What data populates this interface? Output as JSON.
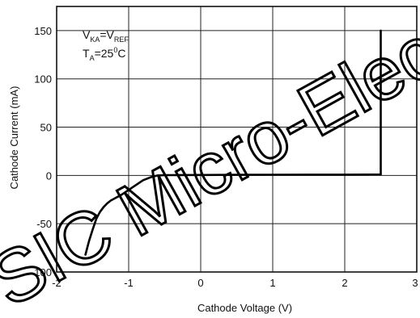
{
  "chart_data": {
    "type": "line",
    "xlabel": "Cathode Voltage (V)",
    "ylabel": "Cathode Current (mA)",
    "xlim": [
      -2,
      3
    ],
    "ylim": [
      -100,
      175
    ],
    "x_ticks": [
      -2,
      -1,
      0,
      1,
      2,
      3
    ],
    "y_ticks": [
      -100,
      -50,
      0,
      50,
      100,
      150
    ],
    "x_tick_labels": [
      "-2",
      "-1",
      "0",
      "1",
      "2",
      "3"
    ],
    "y_tick_labels": [
      "-100",
      "-50",
      "0",
      "50",
      "100",
      "150"
    ],
    "grid": true,
    "annotation": {
      "line1_main": "V",
      "line1_sub1": "KA",
      "line1_eq": "=V",
      "line1_sub2": "REF",
      "line2_main": "T",
      "line2_sub": "A",
      "line2_eq": "=25",
      "line2_sup": "0",
      "line2_unit": "C"
    },
    "series": [
      {
        "x": [
          -1.6,
          -1.55,
          -1.5,
          -1.45,
          -1.4,
          -1.35,
          -1.3,
          -1.25,
          -1.2,
          -1.1,
          -1.0,
          -0.9,
          -0.8,
          -0.7,
          -0.6,
          -0.5,
          -0.3,
          0.0,
          0.5,
          1.0,
          1.5,
          2.0,
          2.3,
          2.5,
          2.5
        ],
        "y": [
          -82,
          -68,
          -56,
          -45,
          -38,
          -33,
          -29,
          -26,
          -24,
          -20,
          -15,
          -10,
          -5,
          -2,
          0,
          0.3,
          0.4,
          0.5,
          0.6,
          0.7,
          0.8,
          0.8,
          0.9,
          1,
          150
        ]
      }
    ],
    "watermark": "SIC Micro-Elec"
  }
}
